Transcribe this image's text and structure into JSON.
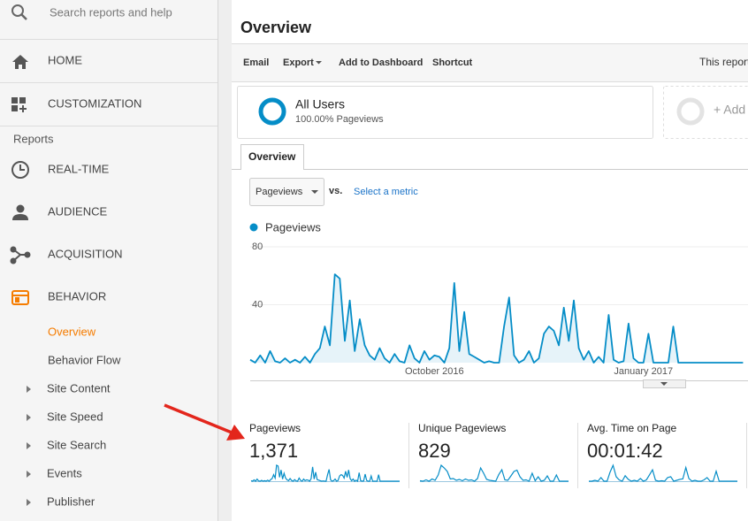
{
  "search": {
    "placeholder": "Search reports and help"
  },
  "nav": {
    "top": [
      "HOME",
      "CUSTOMIZATION"
    ],
    "reports_heading": "Reports",
    "sections": [
      "REAL-TIME",
      "AUDIENCE",
      "ACQUISITION",
      "BEHAVIOR"
    ],
    "behavior_items": [
      "Overview",
      "Behavior Flow"
    ],
    "behavior_groups": [
      "Site Content",
      "Site Speed",
      "Site Search",
      "Events",
      "Publisher"
    ]
  },
  "header": {
    "title": "Overview"
  },
  "toolbar": {
    "items": [
      "Email",
      "Export",
      "Add to Dashboard",
      "Shortcut"
    ],
    "right": "This report"
  },
  "segment": {
    "name": "All Users",
    "detail": "100.00% Pageviews",
    "add": "+ Add"
  },
  "tab": "Overview",
  "metric_picker": {
    "selected": "Pageviews",
    "vs": "vs.",
    "select": "Select a metric"
  },
  "chart_data": {
    "type": "line",
    "categories": [
      null,
      null,
      null,
      null,
      null,
      null,
      null,
      null,
      null,
      null,
      null,
      null,
      null,
      null,
      null,
      null,
      null,
      null,
      null,
      null,
      null,
      null,
      null,
      null,
      null,
      null,
      null,
      null,
      null,
      null,
      null,
      null,
      null,
      null,
      null,
      null,
      null,
      "October 2016",
      null,
      null,
      null,
      null,
      null,
      null,
      null,
      null,
      null,
      null,
      null,
      null,
      null,
      null,
      null,
      null,
      null,
      null,
      null,
      null,
      null,
      null,
      null,
      null,
      null,
      null,
      null,
      null,
      null,
      null,
      null,
      null,
      null,
      null,
      null,
      null,
      null,
      null,
      null,
      null,
      null,
      "January 2017",
      null,
      null,
      null,
      null,
      null,
      null,
      null,
      null,
      null,
      null,
      null,
      null,
      null,
      null,
      null,
      null,
      null,
      null,
      null,
      null
    ],
    "series": [
      {
        "name": "Pageviews",
        "color": "#058dc7",
        "values": [
          2,
          0,
          5,
          0,
          8,
          1,
          0,
          3,
          0,
          2,
          0,
          4,
          0,
          6,
          10,
          25,
          12,
          61,
          58,
          15,
          43,
          8,
          30,
          12,
          5,
          2,
          10,
          3,
          0,
          6,
          1,
          0,
          12,
          3,
          0,
          8,
          2,
          5,
          4,
          0,
          10,
          55,
          8,
          35,
          6,
          4,
          2,
          0,
          1,
          0,
          0,
          25,
          45,
          5,
          0,
          2,
          8,
          0,
          3,
          20,
          25,
          22,
          12,
          38,
          15,
          43,
          10,
          2,
          8,
          0,
          4,
          0,
          33,
          2,
          0,
          1,
          27,
          3,
          0,
          0,
          20,
          0,
          0,
          0,
          0,
          25,
          0,
          0,
          0,
          0,
          0,
          0,
          0,
          0,
          0,
          0,
          0,
          0,
          0,
          0
        ]
      }
    ],
    "ylim": [
      0,
      80
    ],
    "yticks": [
      40,
      80
    ],
    "grid": true,
    "area": true
  },
  "metrics": [
    {
      "name": "Pageviews",
      "value": "1,371"
    },
    {
      "name": "Unique Pageviews",
      "value": "829",
      "sparkline": [
        1,
        0,
        3,
        0,
        5,
        2,
        14,
        36,
        30,
        22,
        5,
        6,
        2,
        4,
        1,
        5,
        2,
        3,
        0,
        6,
        30,
        18,
        4,
        2,
        1,
        0,
        15,
        26,
        3,
        2,
        12,
        22,
        25,
        10,
        2,
        3,
        0,
        18,
        1,
        10,
        0,
        2,
        12,
        0,
        0,
        14,
        0,
        0,
        0,
        0
      ]
    },
    {
      "name": "Avg. Time on Page",
      "value": "00:01:42",
      "sparkline": [
        0,
        0,
        2,
        0,
        8,
        0,
        0,
        20,
        35,
        10,
        3,
        0,
        12,
        4,
        0,
        2,
        0,
        6,
        0,
        3,
        14,
        25,
        2,
        0,
        1,
        0,
        8,
        10,
        0,
        2,
        4,
        5,
        30,
        6,
        0,
        2,
        0,
        0,
        3,
        8,
        0,
        0,
        22,
        0,
        0,
        0,
        0,
        0,
        0,
        0
      ]
    }
  ]
}
